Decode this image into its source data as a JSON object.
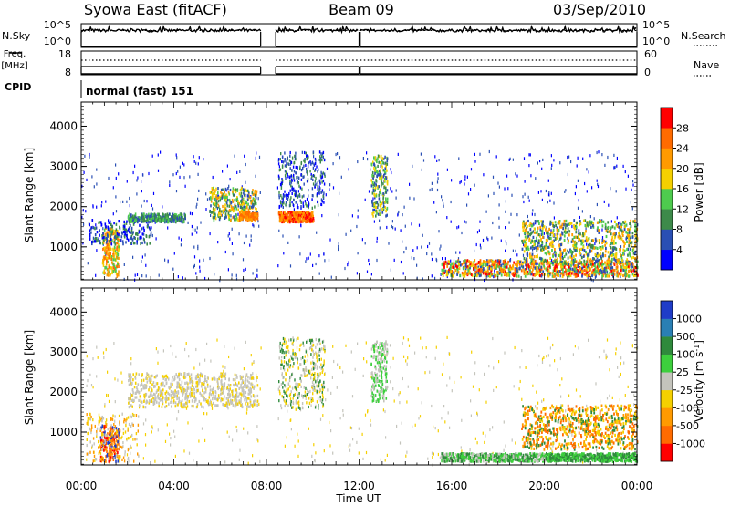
{
  "header": {
    "station": "Syowa East (fitACF)",
    "beam": "Beam 09",
    "date": "03/Sep/2010"
  },
  "left_labels": {
    "nsky": "N.Sky",
    "freq_top": "Freq.",
    "freq_unit": "[MHz]",
    "cpid": "CPID"
  },
  "right_labels": {
    "nsearch": "N.Search",
    "nave": "Nave"
  },
  "noise_panel": {
    "left_ticks": [
      "10^5",
      "10^0"
    ],
    "right_ticks": [
      "10^5",
      "10^0"
    ]
  },
  "freq_panel": {
    "left_ticks": [
      "18",
      "8"
    ],
    "right_ticks": [
      "60",
      "0"
    ]
  },
  "cpid_text": "normal (fast) 151",
  "chart_data": [
    {
      "type": "heatmap",
      "title": "",
      "xlabel": "",
      "ylabel": "Slant Range [km]",
      "xlim_hours": [
        0,
        24
      ],
      "ylim": [
        180,
        4600
      ],
      "yticks": [
        "1000",
        "2000",
        "3000",
        "4000"
      ],
      "colorbar": {
        "label": "Power [dB]",
        "ticks": [
          "4",
          "8",
          "12",
          "16",
          "20",
          "24",
          "28"
        ],
        "colors": [
          "#0000ff",
          "#2a4fb4",
          "#3d8a4a",
          "#4ecb4e",
          "#f5d000",
          "#ff9a00",
          "#ff6b00",
          "#ff0000"
        ]
      },
      "data_gaps_hours": [
        [
          7.75,
          8.4
        ],
        [
          12.0,
          12.1
        ]
      ],
      "echo_regions": [
        {
          "t": [
            0.9,
            1.6
          ],
          "range": [
            300,
            1500
          ],
          "level": "20-24 dB"
        },
        {
          "t": [
            2.0,
            4.5
          ],
          "range": [
            1650,
            1850
          ],
          "level": "8-16 dB"
        },
        {
          "t": [
            5.5,
            7.6
          ],
          "range": [
            1700,
            2500
          ],
          "level": "12-24 dB"
        },
        {
          "t": [
            8.5,
            10.0
          ],
          "range": [
            1650,
            1900
          ],
          "level": "24-28 dB"
        },
        {
          "t": [
            12.5,
            13.2
          ],
          "range": [
            1800,
            3300
          ],
          "level": "8-20 dB"
        },
        {
          "t": [
            15.5,
            24.0
          ],
          "range": [
            300,
            700
          ],
          "level": "16-28 dB"
        },
        {
          "t": [
            19.0,
            24.0
          ],
          "range": [
            600,
            1700
          ],
          "level": "8-24 dB"
        }
      ]
    },
    {
      "type": "heatmap",
      "title": "",
      "xlabel": "Time UT",
      "ylabel": "Slant Range [km]",
      "xlim_hours": [
        0,
        24
      ],
      "xticks": [
        "00:00",
        "04:00",
        "08:00",
        "12:00",
        "16:00",
        "20:00",
        "00:00"
      ],
      "ylim": [
        180,
        4600
      ],
      "yticks": [
        "1000",
        "2000",
        "3000",
        "4000"
      ],
      "colorbar": {
        "label": "Velocity [m s-1]",
        "ticks": [
          "1000",
          "500",
          "100",
          "25",
          "-25",
          "-100",
          "-500",
          "-1000"
        ],
        "colors": [
          "#1f3cc8",
          "#2a7fb4",
          "#2f8a3c",
          "#3dcf3d",
          "#c4c4bc",
          "#f5d000",
          "#ff9a00",
          "#ff6b00",
          "#ff0000"
        ]
      },
      "data_gaps_hours": [
        [
          7.75,
          8.4
        ],
        [
          12.0,
          12.1
        ]
      ],
      "echo_regions": [
        {
          "t": [
            0.8,
            1.6
          ],
          "range": [
            300,
            1200
          ],
          "level": "-100 to -500 m/s"
        },
        {
          "t": [
            2.0,
            7.6
          ],
          "range": [
            1650,
            2500
          ],
          "level": "-25 to 25 m/s"
        },
        {
          "t": [
            15.5,
            20.0
          ],
          "range": [
            300,
            500
          ],
          "level": "100 to 500 m/s"
        },
        {
          "t": [
            19.0,
            24.0
          ],
          "range": [
            600,
            1700
          ],
          "level": "-100 to -500 m/s"
        },
        {
          "t": [
            20.0,
            24.0
          ],
          "range": [
            300,
            500
          ],
          "level": "25 to 100 m/s"
        }
      ]
    }
  ]
}
